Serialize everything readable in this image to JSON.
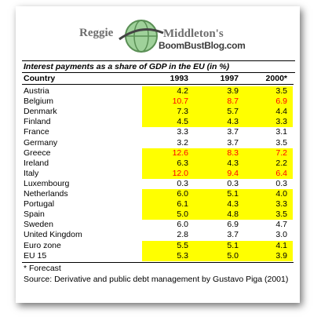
{
  "logo": {
    "left": "Reggie",
    "right": "Middleton's",
    "site": "BoomBustBlog.com"
  },
  "table": {
    "title": "Interest payments as a share of GDP in the EU (in %)",
    "header": [
      "Country",
      "1993",
      "1997",
      "2000*"
    ],
    "highlight_color": "#ffff00",
    "alert_color": "#ff0000",
    "rows": [
      {
        "cells": [
          "Austria",
          "4.2",
          "3.9",
          "3.5"
        ],
        "highlight": true,
        "alert": false
      },
      {
        "cells": [
          "Belgium",
          "10.7",
          "8.7",
          "6.9"
        ],
        "highlight": true,
        "alert": true
      },
      {
        "cells": [
          "Denmark",
          "7.3",
          "5.7",
          "4.4"
        ],
        "highlight": true,
        "alert": false
      },
      {
        "cells": [
          "Finland",
          "4.5",
          "4.3",
          "3.3"
        ],
        "highlight": true,
        "alert": false
      },
      {
        "cells": [
          "France",
          "3.3",
          "3.7",
          "3.1"
        ],
        "highlight": false,
        "alert": false
      },
      {
        "cells": [
          "Germany",
          "3.2",
          "3.7",
          "3.5"
        ],
        "highlight": false,
        "alert": false
      },
      {
        "cells": [
          "Greece",
          "12.6",
          "8.3",
          "7.2"
        ],
        "highlight": true,
        "alert": true
      },
      {
        "cells": [
          "Ireland",
          "6.3",
          "4.3",
          "2.2"
        ],
        "highlight": true,
        "alert": false
      },
      {
        "cells": [
          "Italy",
          "12.0",
          "9.4",
          "6.4"
        ],
        "highlight": true,
        "alert": true
      },
      {
        "cells": [
          "Luxembourg",
          "0.3",
          "0.3",
          "0.3"
        ],
        "highlight": false,
        "alert": false
      },
      {
        "cells": [
          "Netherlands",
          "6.0",
          "5.1",
          "4.0"
        ],
        "highlight": true,
        "alert": false
      },
      {
        "cells": [
          "Portugal",
          "6.1",
          "4.3",
          "3.3"
        ],
        "highlight": true,
        "alert": false
      },
      {
        "cells": [
          "Spain",
          "5.0",
          "4.8",
          "3.5"
        ],
        "highlight": true,
        "alert": false
      },
      {
        "cells": [
          "Sweden",
          "6.0",
          "6.9",
          "4.7"
        ],
        "highlight": false,
        "alert": false
      },
      {
        "cells": [
          "United Kingdom",
          "2.8",
          "3.7",
          "3.0"
        ],
        "highlight": false,
        "alert": false
      },
      {
        "cells": [
          "Euro zone",
          "5.5",
          "5.1",
          "4.1"
        ],
        "highlight": true,
        "alert": false
      },
      {
        "cells": [
          "EU 15",
          "5.3",
          "5.0",
          "3.9"
        ],
        "highlight": true,
        "alert": false
      }
    ],
    "notes": [
      "* Forecast",
      "Source: Derivative and public debt management by Gustavo Piga (2001)"
    ]
  }
}
